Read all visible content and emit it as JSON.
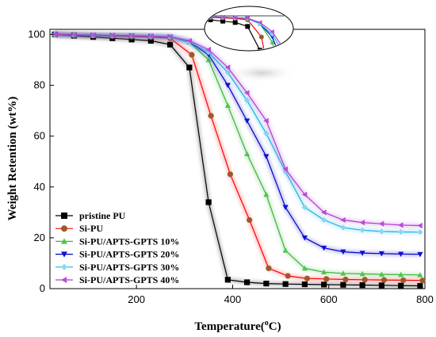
{
  "chart_data": {
    "type": "line",
    "xlabel": "Temperature(",
    "xlabel_sup": "o",
    "xlabel_tail": "C)",
    "ylabel": "Weight Retention (wt%)",
    "xlim": [
      20,
      800
    ],
    "ylim": [
      0,
      102
    ],
    "xticks": [
      200,
      400,
      600,
      800
    ],
    "yticks": [
      0,
      20,
      40,
      60,
      80,
      100
    ],
    "legend_position": "bottom-left",
    "inset": "zoomed view of curves near 100 wt% onset, drawn in an ellipse at top",
    "series": [
      {
        "name": "pristine PU",
        "color": "#000000",
        "marker": "square",
        "x": [
          30,
          70,
          110,
          150,
          190,
          230,
          270,
          310,
          350,
          390,
          430,
          470,
          510,
          550,
          590,
          630,
          670,
          710,
          750,
          790
        ],
        "y": [
          100,
          99.5,
          99,
          98.5,
          98,
          97.5,
          96,
          87,
          34,
          3.5,
          2.5,
          2,
          1.8,
          1.7,
          1.6,
          1.5,
          1.4,
          1.3,
          1.2,
          1.1
        ]
      },
      {
        "name": "Si-PU",
        "color": "#ff0000",
        "marker": "circle",
        "marker_color": "#9a5a2a",
        "x": [
          30,
          70,
          110,
          150,
          190,
          230,
          270,
          315,
          355,
          395,
          435,
          475,
          515,
          555,
          595,
          635,
          675,
          715,
          755,
          795
        ],
        "y": [
          100,
          99.8,
          99.6,
          99.4,
          99.2,
          99,
          98.5,
          92,
          68,
          45,
          27,
          8,
          5,
          4,
          3.8,
          3.6,
          3.5,
          3.4,
          3.3,
          3.2
        ]
      },
      {
        "name": "Si-PU/APTS-GPTS 10%",
        "color": "#3cb43c",
        "marker": "triangle-up",
        "marker_color": "#4cc84c",
        "x": [
          30,
          70,
          110,
          150,
          190,
          230,
          270,
          310,
          350,
          390,
          430,
          470,
          510,
          550,
          590,
          630,
          670,
          710,
          750,
          790
        ],
        "y": [
          100,
          99.8,
          99.6,
          99.5,
          99.4,
          99.2,
          99,
          97,
          90,
          72,
          53,
          37,
          15,
          8,
          6.5,
          6,
          5.8,
          5.6,
          5.5,
          5.4
        ]
      },
      {
        "name": "Si-PU/APTS-GPTS 20%",
        "color": "#0000c8",
        "marker": "triangle-down",
        "marker_color": "#1010d0",
        "x": [
          30,
          70,
          110,
          150,
          190,
          230,
          270,
          310,
          350,
          390,
          430,
          470,
          510,
          550,
          590,
          630,
          670,
          710,
          750,
          790
        ],
        "y": [
          100,
          99.8,
          99.7,
          99.6,
          99.5,
          99.3,
          99,
          97,
          92,
          80,
          66,
          52,
          32,
          20,
          16,
          14.5,
          14,
          13.8,
          13.6,
          13.5
        ]
      },
      {
        "name": "Si-PU/APTS-GPTS 30%",
        "color": "#18b4e6",
        "marker": "diamond",
        "marker_color": "#8ad6f0",
        "x": [
          30,
          70,
          110,
          150,
          190,
          230,
          270,
          310,
          350,
          390,
          430,
          470,
          510,
          550,
          590,
          630,
          670,
          710,
          750,
          790
        ],
        "y": [
          100,
          99.8,
          99.7,
          99.6,
          99.5,
          99.3,
          99,
          97,
          93,
          85,
          74,
          61,
          46,
          32,
          27,
          24,
          23,
          22.5,
          22.3,
          22.2
        ]
      },
      {
        "name": "Si-PU/APTS-GPTS 40%",
        "color": "#b03cd0",
        "marker": "triangle-left",
        "marker_color": "#b84cd8",
        "x": [
          30,
          70,
          110,
          150,
          190,
          230,
          270,
          310,
          350,
          390,
          430,
          470,
          510,
          550,
          590,
          630,
          670,
          710,
          750,
          790
        ],
        "y": [
          100,
          99.8,
          99.7,
          99.6,
          99.5,
          99.3,
          99.1,
          97.5,
          94,
          87,
          77,
          66,
          47,
          37,
          30,
          27,
          26,
          25.5,
          25,
          24.8
        ]
      }
    ]
  }
}
